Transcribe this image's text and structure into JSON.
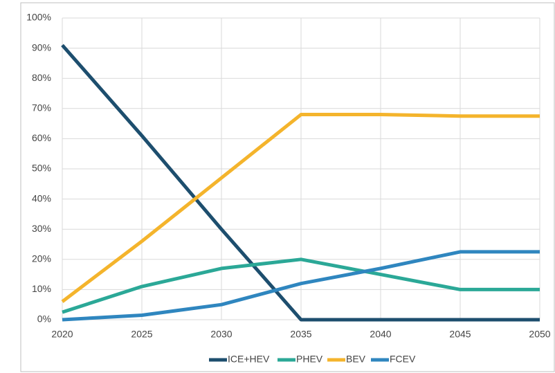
{
  "chart_data": {
    "type": "line",
    "x": [
      2020,
      2025,
      2030,
      2035,
      2040,
      2045,
      2050
    ],
    "series": [
      {
        "name": "ICE+HEV",
        "color": "#1d4e6e",
        "values": [
          91,
          61,
          30,
          0,
          0,
          0,
          0
        ]
      },
      {
        "name": "PHEV",
        "color": "#2ba897",
        "values": [
          2.5,
          11,
          17,
          20,
          15,
          10,
          10
        ]
      },
      {
        "name": "BEV",
        "color": "#f4b42c",
        "values": [
          6,
          26,
          47,
          68,
          68,
          67.5,
          67.5
        ]
      },
      {
        "name": "FCEV",
        "color": "#2f86bf",
        "values": [
          0,
          1.5,
          5,
          12,
          17,
          22.5,
          22.5
        ]
      }
    ],
    "xlim": [
      2020,
      2050
    ],
    "xticks": [
      2020,
      2025,
      2030,
      2035,
      2040,
      2045,
      2050
    ],
    "ylim": [
      0,
      100
    ],
    "yticks": [
      {
        "value": 0,
        "label": "0%"
      },
      {
        "value": 10,
        "label": "10%"
      },
      {
        "value": 20,
        "label": "20%"
      },
      {
        "value": 30,
        "label": "30%"
      },
      {
        "value": 40,
        "label": "40%"
      },
      {
        "value": 50,
        "label": "50%"
      },
      {
        "value": 60,
        "label": "60%"
      },
      {
        "value": 70,
        "label": "70%"
      },
      {
        "value": 80,
        "label": "80%"
      },
      {
        "value": 90,
        "label": "90%"
      },
      {
        "value": 100,
        "label": "100%"
      }
    ],
    "grid": true,
    "legend": "bottom"
  }
}
